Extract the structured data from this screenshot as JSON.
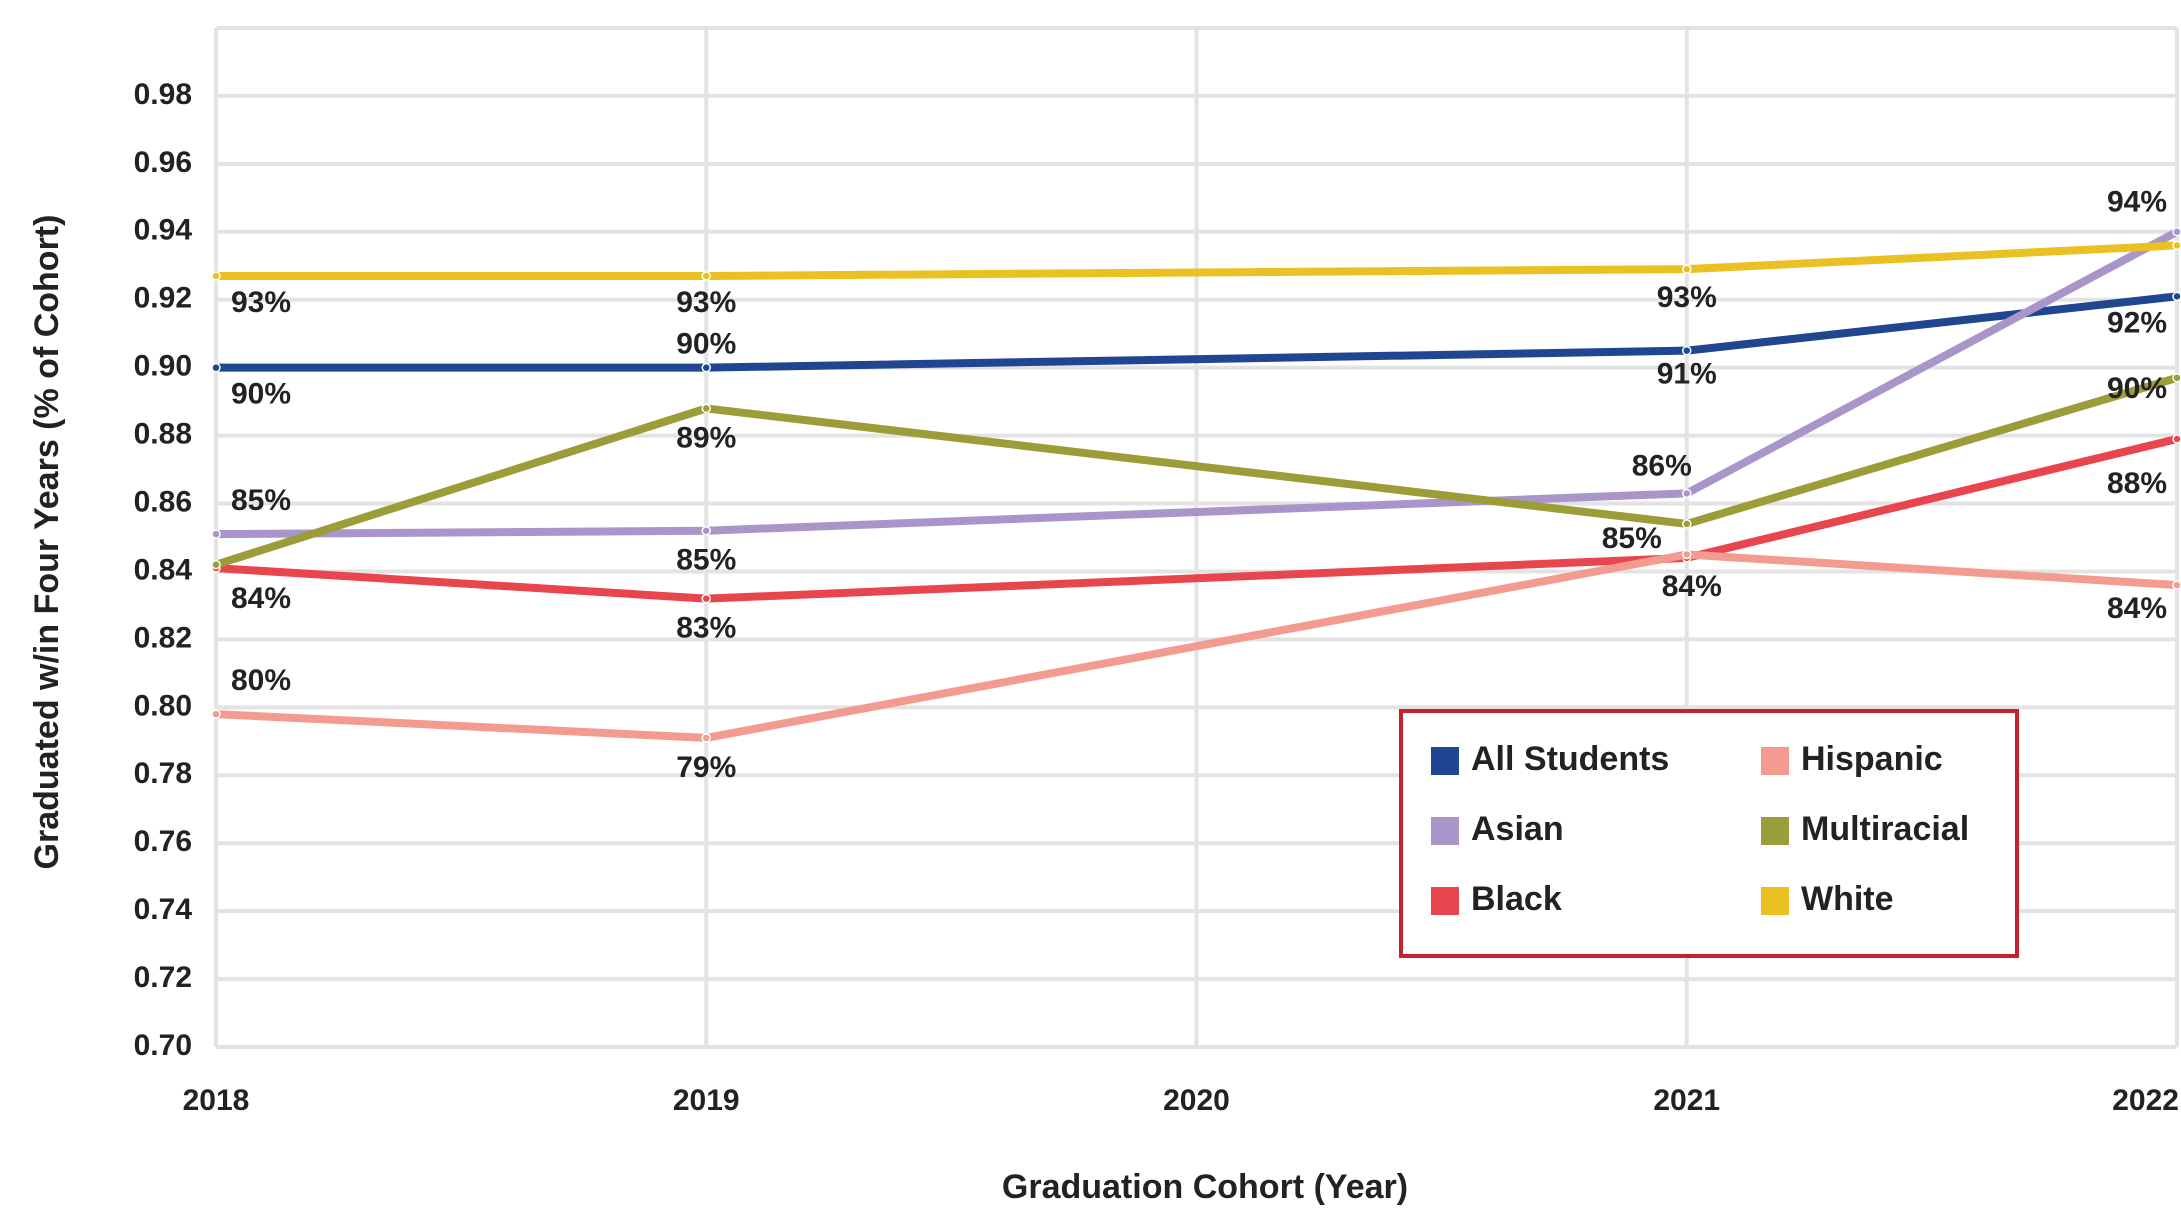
{
  "chart_data": {
    "type": "line",
    "xlabel": "Graduation Cohort (Year)",
    "ylabel": "Graduated w/in Four Years (% of Cohort)",
    "x": [
      2018,
      2019,
      2021,
      2022
    ],
    "xlim": [
      2018,
      2022
    ],
    "xticks": [
      2018,
      2019,
      2020,
      2021,
      2022
    ],
    "ylim": [
      0.7,
      1.0
    ],
    "yticks": [
      {
        "value": 0.7,
        "label": "0.70"
      },
      0.72,
      0.74,
      0.76,
      0.78,
      {
        "value": 0.8,
        "label": "0.80"
      },
      0.82,
      0.84,
      0.86,
      0.88,
      {
        "value": 0.9,
        "label": "0.90"
      },
      0.92,
      0.94,
      0.96,
      0.98
    ],
    "grid": true,
    "legend": "lower right",
    "series": [
      {
        "name": "All Students",
        "color": "#1f4690",
        "values": [
          0.9,
          0.9,
          0.905,
          0.921
        ],
        "value_labels": [
          "90%",
          "90%",
          "91%",
          "92%"
        ]
      },
      {
        "name": "Asian",
        "color": "#a995c9",
        "values": [
          0.851,
          0.852,
          0.863,
          0.94
        ],
        "value_labels": [
          "85%",
          "85%",
          "86%",
          "94%"
        ]
      },
      {
        "name": "Black",
        "color": "#e8454f",
        "values": [
          0.841,
          0.832,
          0.844,
          0.879
        ],
        "value_labels": [
          "84%",
          "83%",
          "84%",
          "88%"
        ]
      },
      {
        "name": "Hispanic",
        "color": "#f29b8e",
        "values": [
          0.798,
          0.791,
          0.845,
          0.836
        ],
        "value_labels": [
          "80%",
          "79%",
          null,
          "84%"
        ]
      },
      {
        "name": "Multiracial",
        "color": "#9c9c38",
        "values": [
          0.842,
          0.888,
          0.854,
          0.897
        ],
        "value_labels": [
          null,
          "89%",
          "85%",
          "90%"
        ]
      },
      {
        "name": "White",
        "color": "#e9c123",
        "values": [
          0.927,
          0.927,
          0.929,
          0.936
        ],
        "value_labels": [
          "93%",
          "93%",
          "93%",
          null
        ]
      }
    ]
  }
}
